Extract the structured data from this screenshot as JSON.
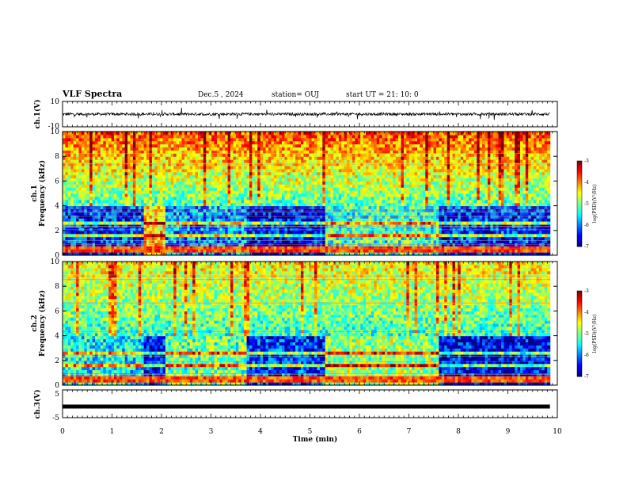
{
  "header": {
    "title": "VLF Spectra",
    "date": "Dec.5 , 2024",
    "station": "station= OUJ",
    "start": "start UT = 21: 10: 0"
  },
  "chart_data": [
    {
      "type": "line",
      "name": "ch1-waveform",
      "ylabel": "ch.1(V)",
      "ylim": [
        -10,
        10
      ],
      "yticks": [
        "10",
        "-10"
      ],
      "xlim": [
        0,
        10
      ]
    },
    {
      "type": "heatmap",
      "name": "ch1-spectrogram",
      "ylabel_line1": "ch.1",
      "ylabel_line2": "Frequency (kHz)",
      "ylim": [
        0,
        10
      ],
      "yticks": [
        "0",
        "2",
        "4",
        "6",
        "8",
        "10"
      ],
      "colorbar": {
        "label": "log(PSD)(V²/Hz)",
        "ticks": [
          "-3",
          "-4",
          "-5",
          "-6",
          "-7"
        ],
        "range": [
          -7,
          -3
        ]
      },
      "segment_boundaries_min": [
        1.65,
        2.1,
        3.7,
        5.3,
        7.6
      ]
    },
    {
      "type": "heatmap",
      "name": "ch2-spectrogram",
      "ylabel_line1": "ch.2",
      "ylabel_line2": "Frequency (kHz)",
      "ylim": [
        0,
        10
      ],
      "yticks": [
        "0",
        "2",
        "4",
        "6",
        "8",
        "10"
      ],
      "colorbar": {
        "label": "log(PSD)(V²/Hz)",
        "ticks": [
          "-3",
          "-4",
          "-5",
          "-6",
          "-7"
        ],
        "range": [
          -7,
          -3
        ]
      },
      "segment_boundaries_min": [
        1.65,
        2.1,
        3.7,
        5.3,
        7.6
      ]
    },
    {
      "type": "line",
      "name": "ch3-trace",
      "ylabel": "ch.3(V)",
      "ylim": [
        -5,
        5
      ],
      "yticks": [
        "5",
        "-5"
      ],
      "x": [
        0,
        9.85
      ],
      "y": [
        -1,
        -1
      ]
    }
  ],
  "xaxis": {
    "label": "Time (min)",
    "ticks": [
      "0",
      "1",
      "2",
      "3",
      "4",
      "5",
      "6",
      "7",
      "8",
      "9",
      "10"
    ],
    "xlim": [
      0,
      10
    ]
  },
  "colors": {
    "jet": [
      "#00007f",
      "#0000ff",
      "#00bfff",
      "#00ff7f",
      "#7fff00",
      "#ffff00",
      "#ffa500",
      "#ff0000",
      "#7f0000"
    ]
  }
}
